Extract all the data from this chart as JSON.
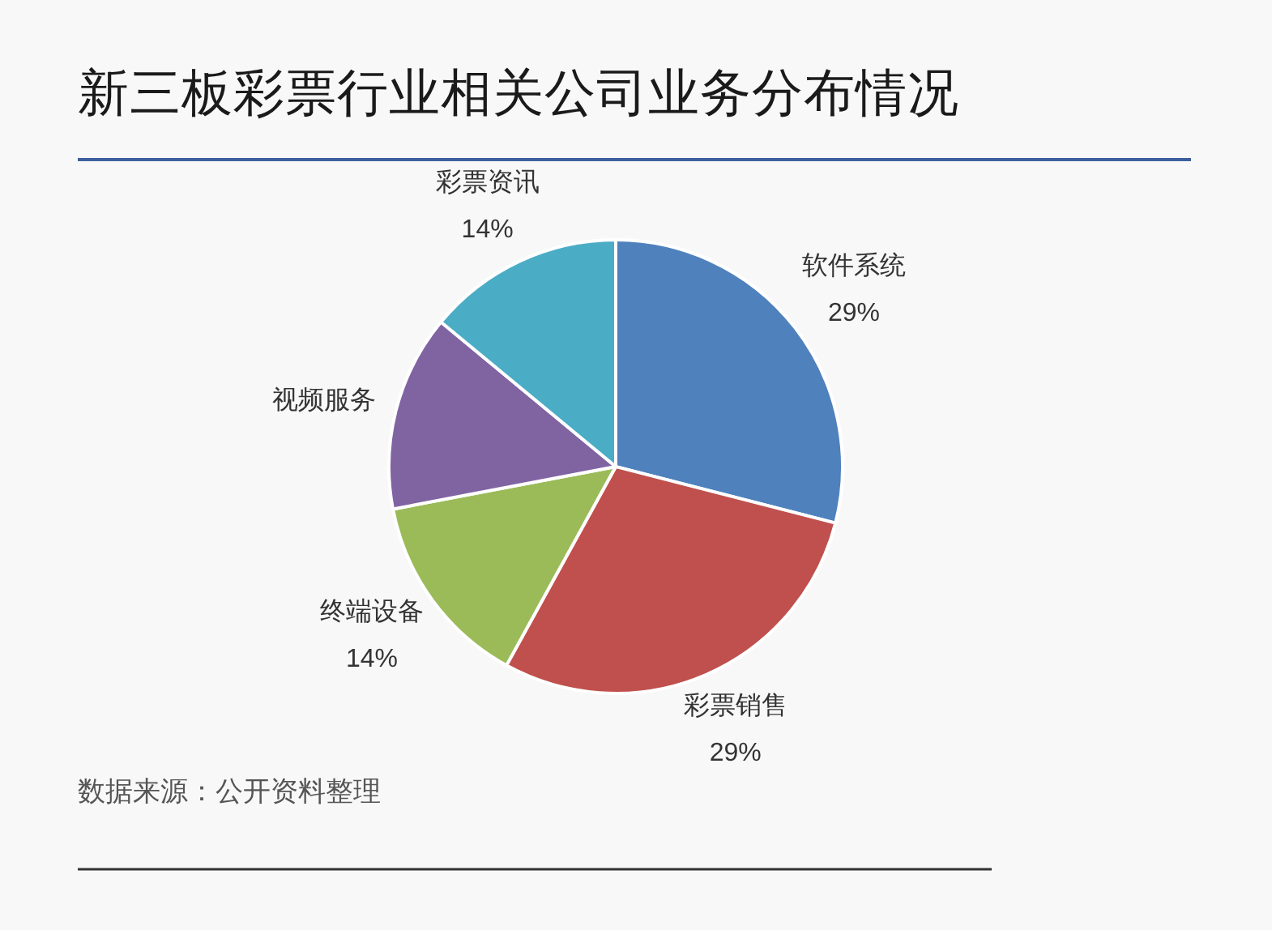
{
  "chart_data": {
    "type": "pie",
    "title": "新三板彩票行业相关公司业务分布情况",
    "categories": [
      "软件系统",
      "彩票销售",
      "终端设备",
      "视频服务",
      "彩票资讯"
    ],
    "values": [
      29,
      29,
      14,
      14,
      14
    ],
    "colors": [
      "#4f81bd",
      "#c0504d",
      "#9bbb59",
      "#8064a2",
      "#4bacc6"
    ],
    "value_labels": [
      "29%",
      "29%",
      "14%",
      null,
      "14%"
    ],
    "annotations": [
      "数据来源：公开资料整理"
    ]
  }
}
